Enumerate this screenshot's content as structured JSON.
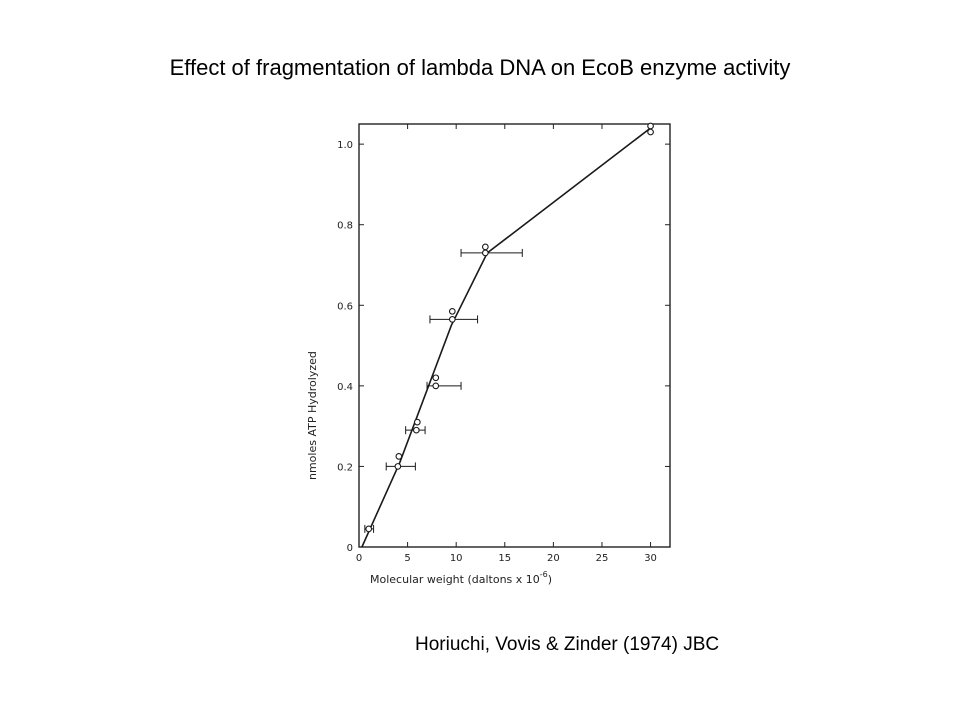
{
  "slide": {
    "title": "Effect of fragmentation of lambda DNA on EcoB enzyme activity",
    "citation": "Horiuchi, Vovis & Zinder (1974) JBC"
  },
  "chart_data": {
    "type": "line",
    "title": "",
    "xlabel": "Molecular weight (daltons x 10",
    "xlabel_exponent": "-6",
    "xlabel_suffix": ")",
    "ylabel": "nmoles ATP Hydrolyzed",
    "xlim": [
      0,
      32
    ],
    "ylim": [
      0,
      1.05
    ],
    "xticks": [
      0,
      5,
      10,
      15,
      20,
      25,
      30
    ],
    "yticks": [
      0,
      0.2,
      0.4,
      0.6,
      0.8,
      1.0
    ],
    "ytick_labels": [
      "0",
      "0.2",
      "0.4",
      "0.6",
      "0.8",
      "1.0"
    ],
    "grid": false,
    "series": [
      {
        "line": [
          [
            0.3,
            0.0
          ],
          [
            4.2,
            0.21
          ],
          [
            9.5,
            0.55
          ],
          [
            13.2,
            0.73
          ],
          [
            30,
            1.04
          ]
        ],
        "points": [
          {
            "x": 1.0,
            "y": 0.045,
            "xerr": [
              0.6,
              1.5
            ],
            "marker": "circle"
          },
          {
            "x": 4.0,
            "y": 0.2,
            "xerr": [
              2.8,
              5.8
            ],
            "marker": "circle"
          },
          {
            "x": 4.1,
            "y": 0.225,
            "marker": "circle"
          },
          {
            "x": 5.9,
            "y": 0.29,
            "xerr": [
              4.8,
              6.8
            ],
            "marker": "circle"
          },
          {
            "x": 6.0,
            "y": 0.31,
            "marker": "circle"
          },
          {
            "x": 7.9,
            "y": 0.4,
            "xerr": [
              7.0,
              10.5
            ],
            "marker": "circle"
          },
          {
            "x": 7.9,
            "y": 0.42,
            "marker": "circle"
          },
          {
            "x": 9.6,
            "y": 0.565,
            "xerr": [
              7.3,
              12.2
            ],
            "marker": "circle"
          },
          {
            "x": 9.6,
            "y": 0.585,
            "marker": "circle"
          },
          {
            "x": 13.0,
            "y": 0.73,
            "xerr": [
              10.5,
              16.8
            ],
            "marker": "circle"
          },
          {
            "x": 13.0,
            "y": 0.745,
            "marker": "circle"
          },
          {
            "x": 30.0,
            "y": 1.03,
            "marker": "circle"
          },
          {
            "x": 30.0,
            "y": 1.045,
            "marker": "circle"
          }
        ]
      }
    ]
  }
}
